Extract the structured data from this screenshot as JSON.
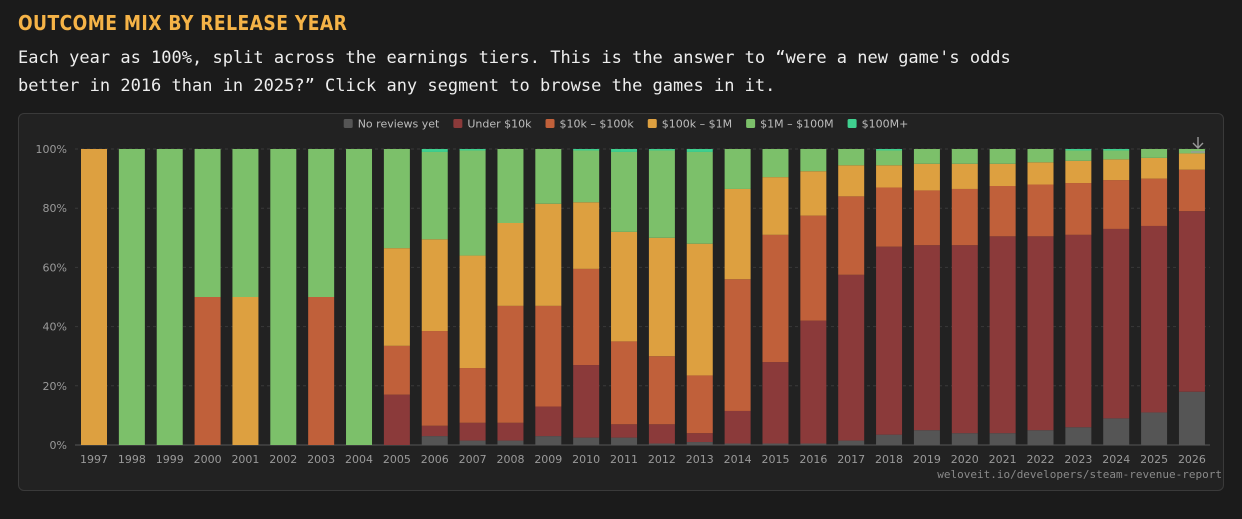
{
  "header": {
    "title": "OUTCOME MIX BY RELEASE YEAR",
    "description": "Each year as 100%, split across the earnings tiers. This is the answer to “were a new game's odds better in 2016 than in 2025?” Click any segment to browse the games in it."
  },
  "source_label": "weloveit.io/developers/steam-revenue-report",
  "icons": {
    "download": "download-icon"
  },
  "chart_data": {
    "type": "bar",
    "stacked": true,
    "normalized": true,
    "categories": [
      "1997",
      "1998",
      "1999",
      "2000",
      "2001",
      "2002",
      "2003",
      "2004",
      "2005",
      "2006",
      "2007",
      "2008",
      "2009",
      "2010",
      "2011",
      "2012",
      "2013",
      "2014",
      "2015",
      "2016",
      "2017",
      "2018",
      "2019",
      "2020",
      "2021",
      "2022",
      "2023",
      "2024",
      "2025",
      "2026"
    ],
    "ylim": [
      0,
      100
    ],
    "yticks": [
      0,
      20,
      40,
      60,
      80,
      100
    ],
    "ytick_labels": [
      "0%",
      "20%",
      "40%",
      "60%",
      "80%",
      "100%"
    ],
    "grid": true,
    "legend_position": "top-center",
    "series": [
      {
        "name": "No reviews yet",
        "color": "#555555",
        "values": [
          0,
          0,
          0,
          0,
          0,
          0,
          0,
          0,
          0,
          3,
          1.5,
          1.5,
          3,
          2.5,
          2.5,
          0.5,
          1,
          0.5,
          0.5,
          0.5,
          1.5,
          3.5,
          5,
          4,
          4,
          5,
          6,
          9,
          11,
          18
        ]
      },
      {
        "name": "Under $10k",
        "color": "#8b3a3a",
        "values": [
          0,
          0,
          0,
          0,
          0,
          0,
          0,
          0,
          17,
          3.5,
          6,
          6,
          10,
          24.5,
          4.5,
          6.5,
          3,
          11,
          27.5,
          41.5,
          56,
          63.5,
          62.5,
          63.5,
          66.5,
          65.5,
          65,
          64,
          63,
          61
        ]
      },
      {
        "name": "$10k – $100k",
        "color": "#c0603a",
        "values": [
          0,
          0,
          0,
          50,
          0,
          0,
          50,
          0,
          16.5,
          32,
          18.5,
          39.5,
          34,
          32.5,
          28,
          23,
          19.5,
          44.5,
          43,
          35.5,
          26.5,
          20,
          18.5,
          19,
          17,
          17.5,
          17.5,
          16.5,
          16,
          14
        ]
      },
      {
        "name": "$100k – $1M",
        "color": "#dda040",
        "values": [
          100,
          0,
          0,
          0,
          50,
          0,
          0,
          0,
          33,
          31,
          38,
          28,
          34.5,
          22.5,
          37,
          40,
          44.5,
          30.5,
          19.5,
          15,
          10.5,
          7.5,
          9,
          8.5,
          7.5,
          7.5,
          7.5,
          7,
          7,
          5.5
        ]
      },
      {
        "name": "$1M – $100M",
        "color": "#7cc06a",
        "values": [
          0,
          100,
          100,
          50,
          50,
          100,
          50,
          100,
          33.5,
          29.5,
          35.5,
          25,
          18.5,
          17.5,
          27,
          29.5,
          31,
          13.5,
          9.5,
          7.5,
          5.5,
          5,
          5,
          5,
          5,
          4.5,
          3.5,
          3,
          3,
          1.5
        ]
      },
      {
        "name": "$100M+",
        "color": "#3fd08f",
        "values": [
          0,
          0,
          0,
          0,
          0,
          0,
          0,
          0,
          0,
          1,
          0.5,
          0,
          0,
          0.5,
          1,
          0.5,
          1,
          0,
          0,
          0,
          0,
          0.5,
          0,
          0,
          0,
          0,
          0.5,
          0.5,
          0,
          0
        ]
      }
    ]
  }
}
